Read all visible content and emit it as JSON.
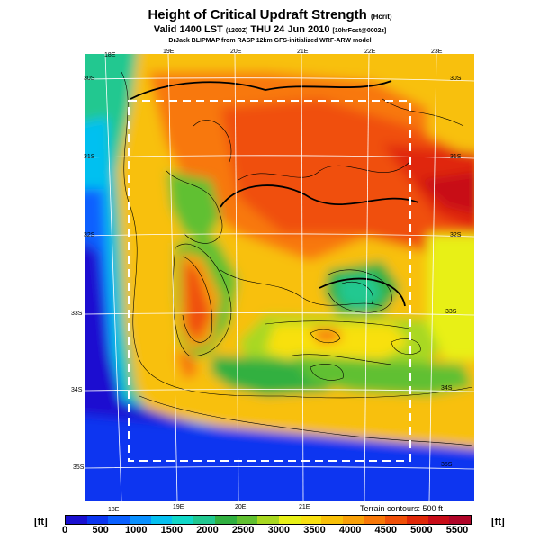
{
  "header": {
    "title": "Height of Critical Updraft Strength",
    "title_unit": "(Hcrit)",
    "subtitle": "Valid 1400 LST",
    "subtitle_time": "(1200Z)",
    "subtitle_date": "THU 24 Jun 2010",
    "subtitle_run": "[10hrFcst@0002z]",
    "credit": "DrJack BLIPMAP from RASP 12km GFS-initialized WRF-ARW model"
  },
  "map": {
    "top_lon_labels": [
      "18E",
      "19E",
      "20E",
      "21E",
      "22E",
      "23E"
    ],
    "bottom_lon_labels": [
      "18E",
      "19E",
      "20E",
      "21E"
    ],
    "left_lat_labels": [
      "30S",
      "31S",
      "32S",
      "33S",
      "34S",
      "35S"
    ],
    "right_lat_labels": [
      "30S",
      "31S",
      "32S",
      "33S",
      "34S",
      "35S"
    ],
    "terrain_note": "Terrain contours: 500 ft"
  },
  "colorbar": {
    "unit_left": "[ft]",
    "unit_right": "[ft]",
    "ticks": [
      "0",
      "500",
      "1000",
      "1500",
      "2000",
      "2500",
      "3000",
      "3500",
      "4000",
      "4500",
      "5000",
      "5500"
    ],
    "colors": [
      "#1a10d0",
      "#0a35f0",
      "#0a60ff",
      "#0890ff",
      "#05c0f0",
      "#10d8c8",
      "#20c890",
      "#30b040",
      "#60c030",
      "#a8d820",
      "#e8f018",
      "#f8e010",
      "#f8c008",
      "#f8a008",
      "#f87808",
      "#f05008",
      "#e02808",
      "#c80c18",
      "#b00428"
    ],
    "scale_max": 5500
  }
}
